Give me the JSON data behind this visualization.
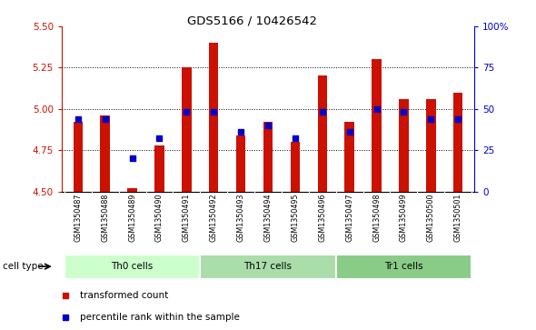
{
  "title": "GDS5166 / 10426542",
  "samples": [
    "GSM1350487",
    "GSM1350488",
    "GSM1350489",
    "GSM1350490",
    "GSM1350491",
    "GSM1350492",
    "GSM1350493",
    "GSM1350494",
    "GSM1350495",
    "GSM1350496",
    "GSM1350497",
    "GSM1350498",
    "GSM1350499",
    "GSM1350500",
    "GSM1350501"
  ],
  "transformed_count": [
    4.92,
    4.96,
    4.52,
    4.78,
    5.25,
    5.4,
    4.84,
    4.92,
    4.8,
    5.2,
    4.92,
    5.3,
    5.06,
    5.06,
    5.1
  ],
  "percentile_rank": [
    44,
    44,
    20,
    32,
    48,
    48,
    36,
    40,
    32,
    48,
    36,
    50,
    48,
    44,
    44
  ],
  "cell_groups": [
    {
      "label": "Th0 cells",
      "start": 0,
      "end": 4
    },
    {
      "label": "Th17 cells",
      "start": 5,
      "end": 9
    },
    {
      "label": "Tr1 cells",
      "start": 10,
      "end": 14
    }
  ],
  "cell_group_colors": [
    "#ccffcc",
    "#aaddaa",
    "#88cc88"
  ],
  "ylim_left": [
    4.5,
    5.5
  ],
  "ylim_right": [
    0,
    100
  ],
  "yticks_left": [
    4.5,
    4.75,
    5.0,
    5.25,
    5.5
  ],
  "yticks_right": [
    0,
    25,
    50,
    75,
    100
  ],
  "ytick_labels_right": [
    "0",
    "25",
    "50",
    "75",
    "100%"
  ],
  "bar_color": "#cc1100",
  "dot_color": "#0000cc",
  "bar_width": 0.35,
  "left_tick_color": "#cc1100",
  "right_tick_color": "#0000cc",
  "legend_items": [
    {
      "color": "#cc1100",
      "label": "transformed count"
    },
    {
      "color": "#0000cc",
      "label": "percentile rank within the sample"
    }
  ],
  "cell_type_label": "cell type",
  "xlabel_bg": "#d0d0d0",
  "plot_bg": "#ffffff"
}
